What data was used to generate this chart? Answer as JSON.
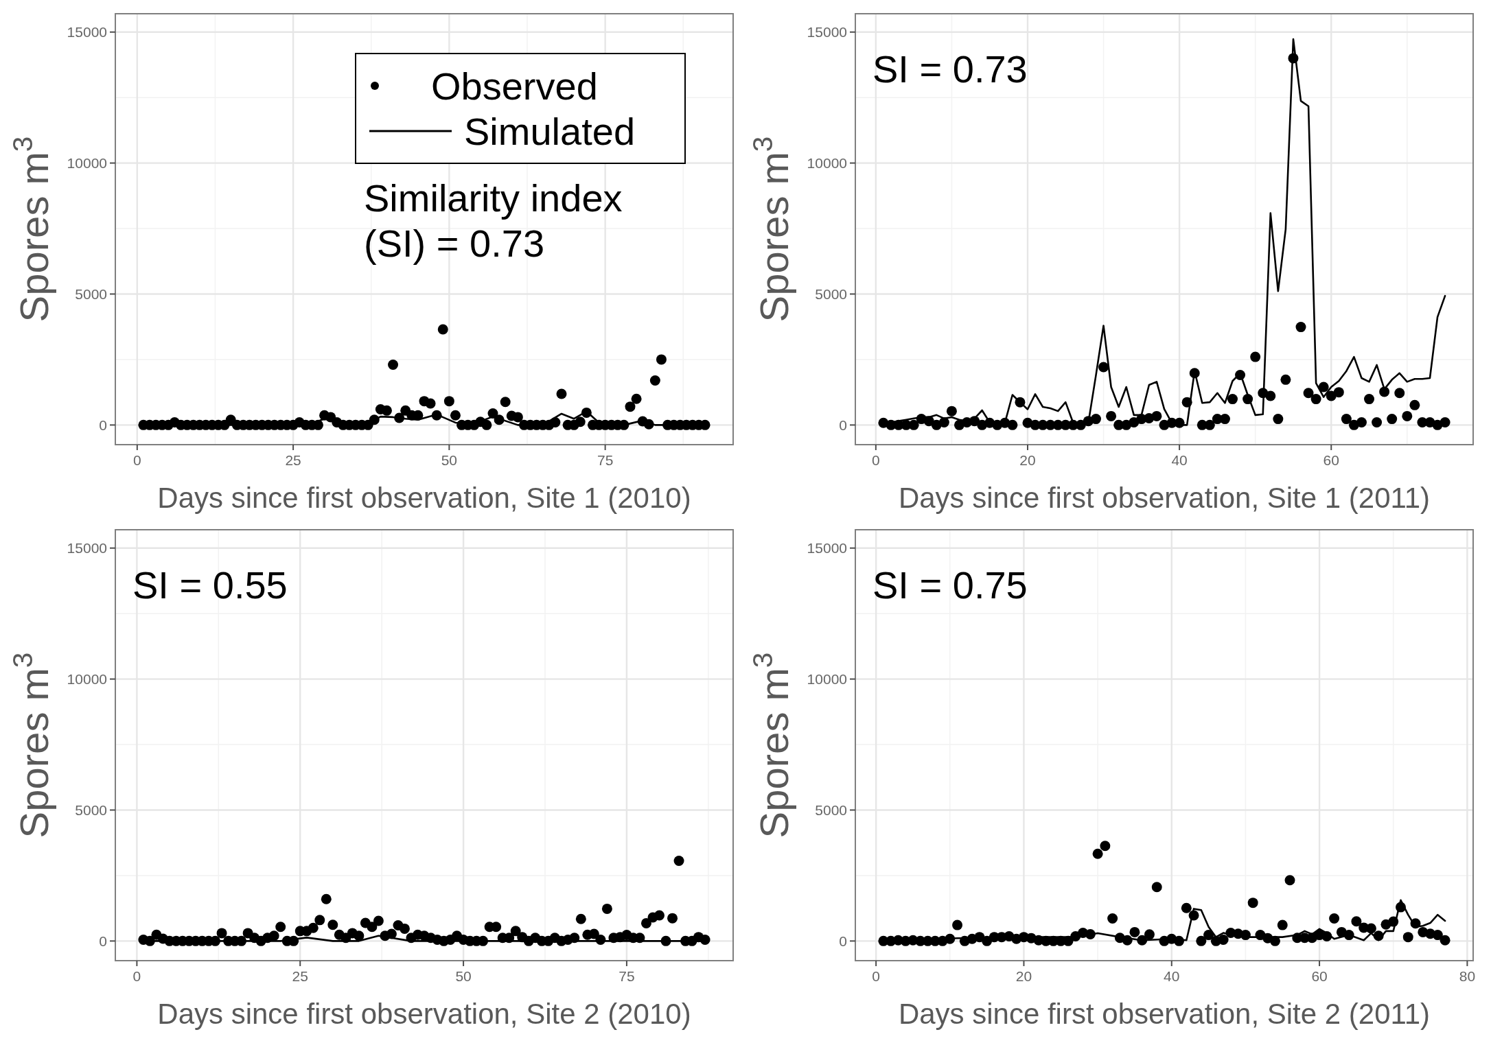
{
  "chart_data": [
    {
      "type": "scatter",
      "xlabel": "Days since first observation, Site 1 (2010)",
      "ylabel": "Spores m$^{3}$",
      "xlim": [
        -3.5,
        95.5
      ],
      "xticks": [
        0,
        25,
        50,
        75
      ],
      "ylim": [
        -750,
        15700
      ],
      "yticks": [
        0,
        5000,
        10000,
        15000
      ],
      "grid": true,
      "legend": "top right",
      "annotations": [
        "Similarity index (SI) = 0.73"
      ],
      "x": [
        1,
        2,
        3,
        4,
        5,
        6,
        7,
        8,
        9,
        10,
        11,
        12,
        13,
        14,
        15,
        16,
        17,
        18,
        19,
        20,
        21,
        22,
        23,
        24,
        25,
        26,
        27,
        28,
        29,
        30,
        31,
        32,
        33,
        34,
        35,
        36,
        37,
        38,
        39,
        40,
        41,
        42,
        43,
        44,
        45,
        46,
        47,
        48,
        49,
        50,
        51,
        52,
        53,
        54,
        55,
        56,
        57,
        58,
        59,
        60,
        61,
        62,
        63,
        64,
        65,
        66,
        67,
        68,
        69,
        70,
        71,
        72,
        73,
        74,
        75,
        76,
        77,
        78,
        79,
        80,
        81,
        82,
        83,
        84,
        85,
        86,
        87,
        88,
        89,
        90,
        91
      ],
      "series": [
        {
          "name": "Observed",
          "color": "#000000",
          "marker": "circle",
          "values": [
            0,
            0,
            0,
            0,
            0,
            100,
            0,
            0,
            0,
            0,
            0,
            0,
            0,
            0,
            200,
            0,
            0,
            0,
            0,
            0,
            0,
            0,
            0,
            0,
            0,
            100,
            0,
            0,
            0,
            370,
            300,
            100,
            0,
            0,
            0,
            0,
            0,
            200,
            600,
            550,
            2300,
            270,
            550,
            370,
            370,
            910,
            820,
            370,
            3650,
            910,
            370,
            0,
            0,
            0,
            120,
            0,
            440,
            200,
            880,
            350,
            300,
            0,
            0,
            0,
            0,
            0,
            100,
            1190,
            0,
            0,
            120,
            470,
            0,
            0,
            0,
            0,
            0,
            0,
            700,
            1000,
            140,
            30,
            1700,
            2500,
            0,
            0,
            0,
            0,
            0,
            0,
            0
          ]
        },
        {
          "name": "Simulated",
          "type": "line",
          "marker": "none",
          "color": "#000000",
          "x": [
            1,
            25,
            28,
            30,
            33,
            37,
            39,
            41,
            43,
            45,
            48,
            51,
            54,
            57,
            61,
            65,
            68,
            70,
            72,
            74,
            78,
            81,
            83,
            91
          ],
          "values": [
            0,
            0,
            50,
            240,
            50,
            50,
            320,
            300,
            240,
            200,
            400,
            90,
            50,
            320,
            0,
            0,
            430,
            240,
            520,
            90,
            0,
            170,
            0,
            0
          ]
        }
      ]
    },
    {
      "type": "scatter",
      "xlabel": "Days since first observation, Site 1 (2011)",
      "ylabel": "Spores m$^{3}$",
      "xlim": [
        -2.7,
        78.7
      ],
      "xticks": [
        0,
        20,
        40,
        60
      ],
      "ylim": [
        -750,
        15700
      ],
      "yticks": [
        0,
        5000,
        10000,
        15000
      ],
      "grid": true,
      "annotations": [
        "SI = 0.73"
      ],
      "x": [
        1,
        2,
        3,
        4,
        5,
        6,
        7,
        8,
        9,
        10,
        11,
        12,
        13,
        14,
        15,
        16,
        17,
        18,
        19,
        20,
        21,
        22,
        23,
        24,
        25,
        26,
        27,
        28,
        29,
        30,
        31,
        32,
        33,
        34,
        35,
        36,
        37,
        38,
        39,
        40,
        41,
        42,
        43,
        44,
        45,
        46,
        47,
        48,
        49,
        50,
        51,
        52,
        53,
        54,
        55,
        56,
        57,
        58,
        59,
        60,
        61,
        62,
        63,
        64,
        65,
        66,
        67,
        68,
        69,
        70,
        71,
        72,
        73,
        74,
        75
      ],
      "series": [
        {
          "color": "#000000",
          "marker": "circle",
          "values": [
            80,
            0,
            0,
            0,
            0,
            230,
            150,
            0,
            100,
            530,
            0,
            100,
            150,
            0,
            80,
            0,
            80,
            0,
            870,
            80,
            0,
            0,
            0,
            0,
            0,
            0,
            0,
            150,
            230,
            2210,
            340,
            0,
            0,
            100,
            230,
            260,
            340,
            0,
            80,
            80,
            870,
            1980,
            0,
            0,
            230,
            230,
            990,
            1910,
            990,
            2600,
            1220,
            1110,
            230,
            1730,
            14000,
            3740,
            1220,
            990,
            1450,
            1110,
            1250,
            230,
            0,
            100,
            990,
            100,
            1270,
            230,
            1220,
            340,
            760,
            100,
            100,
            0,
            100
          ]
        },
        {
          "type": "line",
          "marker": "none",
          "color": "#000000",
          "values": [
            80,
            100,
            150,
            200,
            250,
            300,
            300,
            380,
            250,
            300,
            200,
            150,
            250,
            560,
            100,
            80,
            80,
            1150,
            870,
            600,
            1180,
            690,
            640,
            530,
            870,
            80,
            0,
            80,
            1900,
            3790,
            1450,
            690,
            1450,
            380,
            380,
            1530,
            1650,
            610,
            80,
            0,
            0,
            2060,
            840,
            870,
            1220,
            840,
            1680,
            1980,
            1150,
            380,
            410,
            8090,
            5110,
            7480,
            14730,
            12370,
            12170,
            1600,
            1070,
            1450,
            1680,
            2060,
            2600,
            1790,
            1650,
            2290,
            1370,
            1730,
            1980,
            1650,
            1760,
            1760,
            1790,
            4120,
            4930
          ]
        }
      ]
    },
    {
      "type": "scatter",
      "xlabel": "Days since first observation, Site 2 (2010)",
      "ylabel": "Spores m$^{3}$",
      "xlim": [
        -3.3,
        91.3
      ],
      "xticks": [
        0,
        25,
        50,
        75
      ],
      "ylim": [
        -750,
        15700
      ],
      "yticks": [
        0,
        5000,
        10000,
        15000
      ],
      "grid": true,
      "annotations": [
        "SI = 0.55"
      ],
      "x": [
        1,
        2,
        3,
        4,
        5,
        6,
        7,
        8,
        9,
        10,
        11,
        12,
        13,
        14,
        15,
        16,
        17,
        18,
        19,
        20,
        21,
        22,
        23,
        24,
        25,
        26,
        27,
        28,
        29,
        30,
        31,
        32,
        33,
        34,
        35,
        36,
        37,
        38,
        39,
        40,
        41,
        42,
        43,
        44,
        45,
        46,
        47,
        48,
        49,
        50,
        51,
        52,
        53,
        54,
        55,
        56,
        57,
        58,
        59,
        60,
        61,
        62,
        63,
        64,
        65,
        66,
        67,
        68,
        69,
        70,
        71,
        72,
        73,
        74,
        75,
        76,
        77,
        78,
        79,
        80,
        81,
        82,
        83,
        84,
        85,
        86,
        87
      ],
      "series": [
        {
          "color": "#000000",
          "marker": "circle",
          "values": [
            50,
            0,
            240,
            90,
            0,
            0,
            0,
            0,
            0,
            0,
            0,
            0,
            300,
            0,
            0,
            0,
            300,
            120,
            0,
            120,
            200,
            540,
            0,
            0,
            380,
            380,
            500,
            800,
            1600,
            620,
            240,
            120,
            300,
            200,
            690,
            540,
            770,
            200,
            270,
            600,
            470,
            120,
            240,
            200,
            120,
            50,
            0,
            50,
            200,
            50,
            0,
            0,
            0,
            540,
            540,
            120,
            120,
            380,
            150,
            0,
            120,
            0,
            0,
            120,
            0,
            50,
            120,
            840,
            240,
            270,
            50,
            1230,
            120,
            150,
            230,
            120,
            120,
            680,
            900,
            980,
            0,
            870,
            3060,
            0,
            0,
            150,
            50
          ]
        },
        {
          "type": "line",
          "marker": "none",
          "color": "#000000",
          "x": [
            1,
            22,
            26,
            30,
            34,
            37,
            42,
            87
          ],
          "values": [
            0,
            0,
            130,
            0,
            0,
            200,
            0,
            0
          ]
        }
      ]
    },
    {
      "type": "scatter",
      "xlabel": "Days since first observation, Site 2 (2011)",
      "ylabel": "Spores m$^{3}$",
      "xlim": [
        -2.8,
        80.8
      ],
      "xticks": [
        0,
        20,
        40,
        60,
        80
      ],
      "ylim": [
        -750,
        15700
      ],
      "yticks": [
        0,
        5000,
        10000,
        15000
      ],
      "grid": true,
      "annotations": [
        "SI = 0.75"
      ],
      "x": [
        1,
        2,
        3,
        4,
        5,
        6,
        7,
        8,
        9,
        10,
        11,
        12,
        13,
        14,
        15,
        16,
        17,
        18,
        19,
        20,
        21,
        22,
        23,
        24,
        25,
        26,
        27,
        28,
        29,
        30,
        31,
        32,
        33,
        34,
        35,
        36,
        37,
        38,
        39,
        40,
        41,
        42,
        43,
        44,
        45,
        46,
        47,
        48,
        49,
        50,
        51,
        52,
        53,
        54,
        55,
        56,
        57,
        58,
        59,
        60,
        61,
        62,
        63,
        64,
        65,
        66,
        67,
        68,
        69,
        70,
        71,
        72,
        73,
        74,
        75,
        76,
        77
      ],
      "series": [
        {
          "color": "#000000",
          "marker": "circle",
          "values": [
            0,
            0,
            30,
            0,
            30,
            0,
            0,
            0,
            0,
            80,
            610,
            0,
            80,
            150,
            0,
            150,
            150,
            180,
            80,
            150,
            110,
            30,
            0,
            0,
            0,
            0,
            180,
            310,
            260,
            3330,
            3630,
            860,
            120,
            30,
            340,
            30,
            250,
            2060,
            0,
            80,
            0,
            1260,
            980,
            0,
            230,
            0,
            50,
            310,
            280,
            230,
            1460,
            230,
            110,
            0,
            610,
            2320,
            120,
            120,
            120,
            230,
            180,
            860,
            340,
            230,
            750,
            510,
            480,
            200,
            630,
            740,
            1290,
            150,
            670,
            340,
            280,
            230,
            30
          ]
        },
        {
          "type": "line",
          "marker": "none",
          "color": "#000000",
          "x": [
            1,
            10,
            20,
            27,
            30,
            33,
            36,
            40,
            42,
            43,
            44,
            45,
            46,
            47,
            48,
            50,
            55,
            57,
            58,
            59,
            60,
            61,
            62,
            64,
            66,
            67,
            68,
            69,
            70,
            71,
            72,
            73,
            74,
            75,
            76,
            77
          ],
          "values": [
            0,
            100,
            150,
            150,
            300,
            150,
            30,
            80,
            30,
            1230,
            1180,
            540,
            150,
            310,
            230,
            150,
            150,
            230,
            380,
            260,
            460,
            300,
            80,
            230,
            30,
            300,
            30,
            380,
            380,
            1560,
            1000,
            540,
            580,
            690,
            1000,
            770
          ]
        }
      ]
    }
  ]
}
